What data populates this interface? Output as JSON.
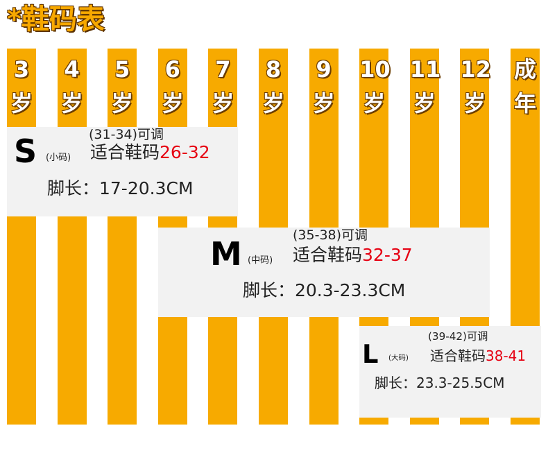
{
  "title": "*鞋码表",
  "columns": [
    {
      "top": "3",
      "bottom": "岁"
    },
    {
      "top": "4",
      "bottom": "岁"
    },
    {
      "top": "5",
      "bottom": "岁"
    },
    {
      "top": "6",
      "bottom": "岁"
    },
    {
      "top": "7",
      "bottom": "岁"
    },
    {
      "top": "8",
      "bottom": "岁"
    },
    {
      "top": "9",
      "bottom": "岁"
    },
    {
      "top": "10",
      "bottom": "岁"
    },
    {
      "top": "11",
      "bottom": "岁"
    },
    {
      "top": "12",
      "bottom": "岁"
    },
    {
      "top": "成",
      "bottom": "年"
    }
  ],
  "sizes": [
    {
      "note": "(31-34)可调",
      "size": "S",
      "tag": "(小码)",
      "fit_label": "适合鞋码",
      "fit": "26-32",
      "foot": "脚长：17-20.3CM"
    },
    {
      "note": "(35-38)可调",
      "size": "M",
      "tag": "(中码)",
      "fit_label": "适合鞋码",
      "fit": "32-37",
      "foot": "脚长：20.3-23.3CM"
    },
    {
      "note": "(39-42)可调",
      "size": "L",
      "tag": "(大码)",
      "fit_label": "适合鞋码",
      "fit": "38-41",
      "foot": "脚长：23.3-25.5CM"
    }
  ]
}
